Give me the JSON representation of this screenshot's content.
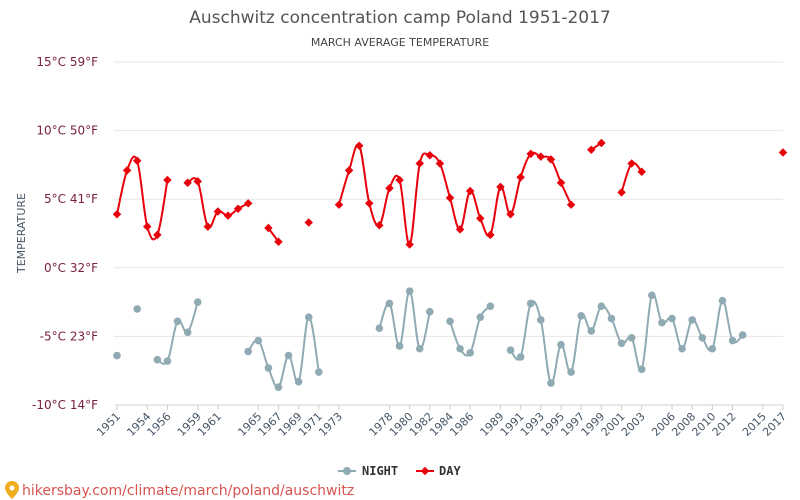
{
  "chart_data": {
    "type": "line",
    "title": "Auschwitz concentration camp Poland 1951-2017",
    "subtitle": "MARCH AVERAGE TEMPERATURE",
    "ylabel": "TEMPERATURE",
    "ylim": [
      -10,
      15
    ],
    "yticks": [
      {
        "value": 15,
        "label": "15°C 59°F"
      },
      {
        "value": 10,
        "label": "10°C 50°F"
      },
      {
        "value": 5,
        "label": "5°C 41°F"
      },
      {
        "value": 0,
        "label": "0°C 32°F"
      },
      {
        "value": -5,
        "label": "-5°C 23°F"
      },
      {
        "value": -10,
        "label": "-10°C 14°F"
      }
    ],
    "xlim": [
      1951,
      2017
    ],
    "xticks": [
      1951,
      1954,
      1956,
      1959,
      1961,
      1965,
      1967,
      1969,
      1971,
      1973,
      1978,
      1980,
      1982,
      1984,
      1986,
      1989,
      1991,
      1993,
      1995,
      1997,
      1999,
      2001,
      2003,
      2006,
      2008,
      2010,
      2012,
      2015,
      2017
    ],
    "grid": true,
    "legend_position": "bottom",
    "series": [
      {
        "name": "NIGHT",
        "color": "#90aab4",
        "points": [
          [
            1951,
            -6.4
          ],
          [
            1953,
            -3.0
          ],
          [
            1955,
            -6.7
          ],
          [
            1956,
            -6.8
          ],
          [
            1957,
            -3.9
          ],
          [
            1958,
            -4.7
          ],
          [
            1959,
            -2.5
          ],
          [
            1964,
            -6.1
          ],
          [
            1965,
            -5.3
          ],
          [
            1966,
            -7.3
          ],
          [
            1967,
            -8.7
          ],
          [
            1968,
            -6.4
          ],
          [
            1969,
            -8.3
          ],
          [
            1970,
            -3.6
          ],
          [
            1971,
            -7.6
          ],
          [
            1977,
            -4.4
          ],
          [
            1978,
            -2.6
          ],
          [
            1979,
            -5.7
          ],
          [
            1980,
            -1.7
          ],
          [
            1981,
            -5.9
          ],
          [
            1982,
            -3.2
          ],
          [
            1984,
            -3.9
          ],
          [
            1985,
            -5.9
          ],
          [
            1986,
            -6.2
          ],
          [
            1987,
            -3.6
          ],
          [
            1988,
            -2.8
          ],
          [
            1990,
            -6.0
          ],
          [
            1991,
            -6.5
          ],
          [
            1992,
            -2.6
          ],
          [
            1993,
            -3.8
          ],
          [
            1994,
            -8.4
          ],
          [
            1995,
            -5.6
          ],
          [
            1996,
            -7.6
          ],
          [
            1997,
            -3.5
          ],
          [
            1998,
            -4.6
          ],
          [
            1999,
            -2.8
          ],
          [
            2000,
            -3.7
          ],
          [
            2001,
            -5.5
          ],
          [
            2002,
            -5.1
          ],
          [
            2003,
            -7.4
          ],
          [
            2004,
            -2.0
          ],
          [
            2005,
            -4.0
          ],
          [
            2006,
            -3.7
          ],
          [
            2007,
            -5.9
          ],
          [
            2008,
            -3.8
          ],
          [
            2009,
            -5.1
          ],
          [
            2010,
            -5.9
          ],
          [
            2011,
            -2.4
          ],
          [
            2012,
            -5.3
          ],
          [
            2013,
            -4.9
          ]
        ]
      },
      {
        "name": "DAY",
        "color": "#e8000b",
        "points": [
          [
            1951,
            3.9
          ],
          [
            1952,
            7.1
          ],
          [
            1953,
            7.8
          ],
          [
            1954,
            3.0
          ],
          [
            1955,
            2.4
          ],
          [
            1956,
            6.4
          ],
          [
            1958,
            6.2
          ],
          [
            1959,
            6.3
          ],
          [
            1960,
            3.0
          ],
          [
            1961,
            4.1
          ],
          [
            1962,
            3.8
          ],
          [
            1963,
            4.3
          ],
          [
            1964,
            4.7
          ],
          [
            1966,
            2.9
          ],
          [
            1967,
            1.9
          ],
          [
            1970,
            3.3
          ],
          [
            1973,
            4.6
          ],
          [
            1974,
            7.1
          ],
          [
            1975,
            8.9
          ],
          [
            1976,
            4.7
          ],
          [
            1977,
            3.1
          ],
          [
            1978,
            5.8
          ],
          [
            1979,
            6.4
          ],
          [
            1980,
            1.7
          ],
          [
            1981,
            7.6
          ],
          [
            1982,
            8.2
          ],
          [
            1983,
            7.6
          ],
          [
            1984,
            5.1
          ],
          [
            1985,
            2.8
          ],
          [
            1986,
            5.6
          ],
          [
            1987,
            3.6
          ],
          [
            1988,
            2.4
          ],
          [
            1989,
            5.9
          ],
          [
            1990,
            3.9
          ],
          [
            1991,
            6.6
          ],
          [
            1992,
            8.3
          ],
          [
            1993,
            8.1
          ],
          [
            1994,
            7.9
          ],
          [
            1995,
            6.2
          ],
          [
            1996,
            4.6
          ],
          [
            1998,
            8.6
          ],
          [
            1999,
            9.1
          ],
          [
            2001,
            5.5
          ],
          [
            2002,
            7.6
          ],
          [
            2003,
            7.0
          ],
          [
            2017,
            8.4
          ]
        ]
      }
    ]
  },
  "legend": {
    "night_label": "NIGHT",
    "day_label": "DAY"
  },
  "source": {
    "url_text": "hikersbay.com/climate/march/poland/auschwitz",
    "icon": "map-pin-icon",
    "color": "#d9534f"
  }
}
